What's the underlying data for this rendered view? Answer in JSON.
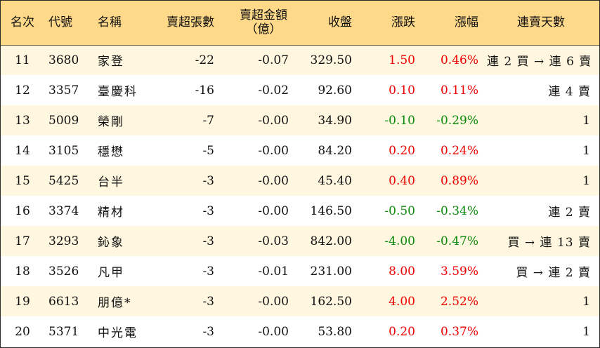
{
  "table": {
    "headers": {
      "rank": "名次",
      "code": "代號",
      "name": "名稱",
      "net_sell_lots": "賣超張數",
      "net_sell_amount": "賣超金額",
      "net_sell_amount_unit": "（億）",
      "close": "收盤",
      "change": "漲跌",
      "change_pct": "漲幅",
      "streak": "連賣天數"
    },
    "colors": {
      "header_bg": "#ffd98a",
      "row_alt_bg": "#fff7df",
      "up": "#ee0000",
      "down": "#0a8a0a"
    },
    "rows": [
      {
        "rank": "11",
        "code": "3680",
        "name": "家登",
        "lots": "-22",
        "amount": "-0.07",
        "close": "329.50",
        "change": "1.50",
        "pct": "0.46%",
        "dir": "up",
        "streak": "連 2 買 → 連 6 賣"
      },
      {
        "rank": "12",
        "code": "3357",
        "name": "臺慶科",
        "lots": "-16",
        "amount": "-0.02",
        "close": "92.60",
        "change": "0.10",
        "pct": "0.11%",
        "dir": "up",
        "streak": "連 4 賣"
      },
      {
        "rank": "13",
        "code": "5009",
        "name": "榮剛",
        "lots": "-7",
        "amount": "-0.00",
        "close": "34.90",
        "change": "-0.10",
        "pct": "-0.29%",
        "dir": "down",
        "streak": "1"
      },
      {
        "rank": "14",
        "code": "3105",
        "name": "穩懋",
        "lots": "-5",
        "amount": "-0.00",
        "close": "84.20",
        "change": "0.20",
        "pct": "0.24%",
        "dir": "up",
        "streak": "1"
      },
      {
        "rank": "15",
        "code": "5425",
        "name": "台半",
        "lots": "-3",
        "amount": "-0.00",
        "close": "45.40",
        "change": "0.40",
        "pct": "0.89%",
        "dir": "up",
        "streak": "1"
      },
      {
        "rank": "16",
        "code": "3374",
        "name": "精材",
        "lots": "-3",
        "amount": "-0.00",
        "close": "146.50",
        "change": "-0.50",
        "pct": "-0.34%",
        "dir": "down",
        "streak": "連 2 賣"
      },
      {
        "rank": "17",
        "code": "3293",
        "name": "鈊象",
        "lots": "-3",
        "amount": "-0.03",
        "close": "842.00",
        "change": "-4.00",
        "pct": "-0.47%",
        "dir": "down",
        "streak": "買 → 連 13 賣"
      },
      {
        "rank": "18",
        "code": "3526",
        "name": "凡甲",
        "lots": "-3",
        "amount": "-0.01",
        "close": "231.00",
        "change": "8.00",
        "pct": "3.59%",
        "dir": "up",
        "streak": "買 → 連 2 賣"
      },
      {
        "rank": "19",
        "code": "6613",
        "name": "朋億*",
        "lots": "-3",
        "amount": "-0.00",
        "close": "162.50",
        "change": "4.00",
        "pct": "2.52%",
        "dir": "up",
        "streak": "1"
      },
      {
        "rank": "20",
        "code": "5371",
        "name": "中光電",
        "lots": "-3",
        "amount": "-0.00",
        "close": "53.80",
        "change": "0.20",
        "pct": "0.37%",
        "dir": "up",
        "streak": "1"
      }
    ]
  }
}
